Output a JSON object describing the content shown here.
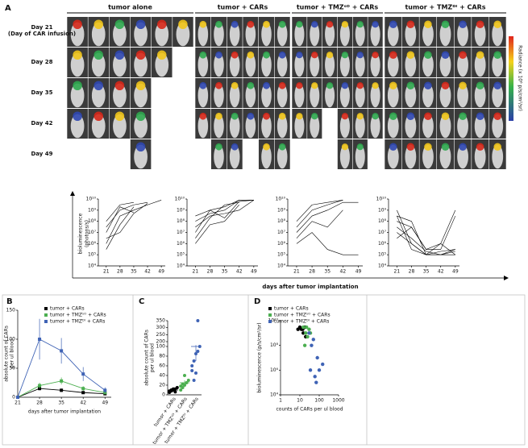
{
  "panel_a": {
    "label": "A",
    "groups": [
      "tumor alone",
      "tumor + CARs",
      "tumor + TMZˢᴼ + CARs",
      "tumor + TMZᴰᴵ + CARs"
    ],
    "days": [
      "Day 21",
      "Day 28",
      "Day 35",
      "Day 42",
      "Day 49"
    ],
    "day_note": "(Day of CAR infusion)",
    "colorbar_label": "Radiance (x 10⁶ p/s/cm²/sr)",
    "ylabel": [
      "bioluminescence",
      "(photons/s)"
    ],
    "xlabel": "days after tumor implantation"
  },
  "chart_data": [
    {
      "type": "line",
      "log_y": true,
      "color": "#000000",
      "x": [
        21,
        28,
        35,
        42,
        49
      ],
      "xlim": [
        17,
        51
      ],
      "xticks": [
        21,
        28,
        35,
        42,
        49
      ],
      "ylim": [
        10000,
        10000000000
      ],
      "yticks": [
        {
          "value": 10000,
          "label": "10⁴"
        },
        {
          "value": 100000,
          "label": "10⁵"
        },
        {
          "value": 1000000,
          "label": "10⁶"
        },
        {
          "value": 10000000,
          "label": "10⁷"
        },
        {
          "value": 100000000,
          "label": "10⁸"
        },
        {
          "value": 1000000000,
          "label": "10⁹"
        },
        {
          "value": 10000000000,
          "label": "10¹⁰"
        }
      ],
      "series": [
        {
          "values": [
            30000000,
            1000000000,
            3000000000,
            5000000000,
            null
          ]
        },
        {
          "values": [
            100000000,
            3000000000,
            5000000000,
            null,
            null
          ]
        },
        {
          "values": [
            1000000,
            300000000,
            1000000000,
            3000000000,
            8000000000
          ]
        },
        {
          "values": [
            300000,
            50000000,
            2000000000,
            null,
            null
          ]
        },
        {
          "values": [
            3000000,
            10000000,
            500000000,
            4000000000,
            null
          ]
        },
        {
          "values": [
            10000000,
            2000000000,
            600000000,
            null,
            null
          ]
        }
      ]
    },
    {
      "type": "line",
      "log_y": true,
      "color": "#000000",
      "x": [
        21,
        28,
        35,
        42,
        49
      ],
      "xlim": [
        17,
        51
      ],
      "xticks": [
        21,
        28,
        35,
        42,
        49
      ],
      "ylim": [
        10000,
        10000000000
      ],
      "yticks": [
        {
          "value": 10000,
          "label": "10⁴"
        },
        {
          "value": 100000,
          "label": "10⁵"
        },
        {
          "value": 1000000,
          "label": "10⁶"
        },
        {
          "value": 10000000,
          "label": "10⁷"
        },
        {
          "value": 100000000,
          "label": "10⁸"
        },
        {
          "value": 1000000000,
          "label": "10⁹"
        },
        {
          "value": 10000000000,
          "label": "10¹⁰"
        }
      ],
      "series": [
        {
          "values": [
            100000000,
            500000000,
            1000000000,
            8000000000,
            8000000000
          ]
        },
        {
          "values": [
            3000000,
            200000000,
            3000000000,
            5000000000,
            null
          ]
        },
        {
          "values": [
            10000000,
            1000000000,
            200000000,
            6000000000,
            8000000000
          ]
        },
        {
          "values": [
            1000000,
            50000000,
            100000000,
            3000000000,
            null
          ]
        },
        {
          "values": [
            300000000,
            1000000000,
            2000000000,
            8000000000,
            8000000000
          ]
        },
        {
          "values": [
            30000000,
            300000000,
            500000000,
            1000000000,
            8000000000
          ]
        }
      ]
    },
    {
      "type": "line",
      "log_y": true,
      "color": "#000000",
      "x": [
        21,
        28,
        35,
        42,
        49
      ],
      "xlim": [
        17,
        51
      ],
      "xticks": [
        21,
        28,
        35,
        42,
        49
      ],
      "ylim": [
        10000,
        10000000000
      ],
      "yticks": [
        {
          "value": 10000,
          "label": "10⁴"
        },
        {
          "value": 100000,
          "label": "10⁵"
        },
        {
          "value": 1000000,
          "label": "10⁶"
        },
        {
          "value": 10000000,
          "label": "10⁷"
        },
        {
          "value": 100000000,
          "label": "10⁸"
        },
        {
          "value": 1000000000,
          "label": "10⁹"
        },
        {
          "value": 10000000000,
          "label": "10¹⁰"
        }
      ],
      "series": [
        {
          "values": [
            100000000,
            3000000000,
            5000000000,
            8000000000,
            null
          ]
        },
        {
          "values": [
            30000000,
            1000000000,
            3000000000,
            8000000000,
            null
          ]
        },
        {
          "values": [
            10000000,
            300000000,
            1000000000,
            5000000000,
            5000000000
          ]
        },
        {
          "values": [
            3000000,
            100000000,
            30000000,
            1000000000,
            null
          ]
        },
        {
          "values": [
            1000000,
            10000000,
            300000,
            100000,
            100000
          ]
        }
      ]
    },
    {
      "type": "line",
      "log_y": true,
      "color": "#000000",
      "x": [
        21,
        28,
        35,
        42,
        49
      ],
      "xlim": [
        17,
        51
      ],
      "xticks": [
        21,
        28,
        35,
        42,
        49
      ],
      "ylim": [
        10000,
        10000000000
      ],
      "yticks": [
        {
          "value": 10000,
          "label": "10⁴"
        },
        {
          "value": 100000,
          "label": "10⁵"
        },
        {
          "value": 1000000,
          "label": "10⁶"
        },
        {
          "value": 10000000,
          "label": "10⁷"
        },
        {
          "value": 100000000,
          "label": "10⁸"
        },
        {
          "value": 1000000000,
          "label": "10⁹"
        },
        {
          "value": 10000000000,
          "label": "10¹⁰"
        }
      ],
      "series": [
        {
          "values": [
            300000000,
            100000000,
            100000,
            1000000,
            1000000000
          ]
        },
        {
          "values": [
            100000000,
            30000000,
            300000,
            300000,
            300000000
          ]
        },
        {
          "values": [
            10000000,
            1000000,
            100000,
            100000,
            100000
          ]
        },
        {
          "values": [
            30000000,
            3000000,
            200000,
            100000,
            300000
          ]
        },
        {
          "values": [
            1000000000,
            1000000,
            100000,
            200000,
            300000
          ]
        },
        {
          "values": [
            3000000,
            30000000,
            300000,
            1000000,
            100000
          ]
        },
        {
          "values": [
            300000000,
            300000,
            100000,
            100000,
            200000
          ]
        }
      ]
    },
    {
      "type": "line",
      "panel": "B",
      "markers": true,
      "x": [
        21,
        28,
        35,
        42,
        49
      ],
      "xlim": [
        21,
        51
      ],
      "xticks": [
        21,
        28,
        35,
        42,
        49
      ],
      "ylim": [
        0,
        150
      ],
      "yticks": [
        0,
        50,
        100,
        150
      ],
      "ylabel": [
        "absolute count of CARs",
        "per ul blood"
      ],
      "xlabel": "days after tumor implantation",
      "series": [
        {
          "name": "tumor + CARs",
          "color": "#000000",
          "values": [
            0,
            15,
            12,
            8,
            6
          ],
          "errors": [
            0,
            3,
            3,
            2,
            2
          ]
        },
        {
          "name": "tumor + TMZˢᴼ + CARs",
          "color": "#4caf50",
          "values": [
            0,
            20,
            28,
            15,
            8
          ],
          "errors": [
            0,
            5,
            6,
            4,
            3
          ]
        },
        {
          "name": "tumor + TMZᴰᴵ + CARs",
          "color": "#3f63b5",
          "values": [
            0,
            100,
            80,
            40,
            12
          ],
          "errors": [
            0,
            35,
            22,
            12,
            5
          ]
        }
      ]
    },
    {
      "type": "strip",
      "panel": "C",
      "ylim": [
        0,
        350
      ],
      "y_break": [
        100,
        200
      ],
      "yticks": [
        0,
        20,
        40,
        60,
        80,
        100,
        200,
        250,
        300,
        350
      ],
      "ylabel": [
        "absolute count of CARs",
        "per ul blood"
      ],
      "categories": [
        "tumor + CARs",
        "tumor + TMZˢᴼ + CARs",
        "tumor + TMZᴰᴵ + CARs"
      ],
      "means": [
        10,
        25,
        100
      ],
      "errors": [
        3,
        5,
        30
      ],
      "series": [
        {
          "color": "#000000",
          "values": [
            5,
            8,
            10,
            12,
            15,
            8,
            10,
            12,
            6
          ]
        },
        {
          "color": "#4caf50",
          "values": [
            10,
            15,
            20,
            25,
            30,
            18,
            22,
            40
          ]
        },
        {
          "color": "#3f63b5",
          "values": [
            50,
            70,
            85,
            90,
            100,
            60,
            30,
            45,
            350
          ]
        }
      ]
    },
    {
      "type": "scatter",
      "panel": "D",
      "log_x": true,
      "log_y": true,
      "xlim": [
        1,
        1000
      ],
      "xticks": [
        1,
        10,
        100,
        1000
      ],
      "ylim": [
        10000,
        10000000000
      ],
      "yticks": [
        {
          "value": 10000,
          "label": "10⁴"
        },
        {
          "value": 1000000,
          "label": "10⁶"
        },
        {
          "value": 100000000,
          "label": "10⁸"
        },
        {
          "value": 10000000000,
          "label": "10¹⁰"
        }
      ],
      "ylabel": "bioluminescence (p/s/cm²/sr)",
      "xlabel": "counts of CARs per ul blood",
      "series": [
        {
          "name": "tumor + CARs",
          "color": "#000000",
          "x": [
            10,
            12,
            15,
            18,
            8,
            20,
            14
          ],
          "values": [
            3000000000,
            2000000000,
            1000000000,
            3000000000,
            2000000000,
            500000000,
            2000000000
          ]
        },
        {
          "name": "tumor + TMZˢᴼ + CARs",
          "color": "#4caf50",
          "x": [
            15,
            20,
            25,
            30,
            18,
            22,
            35
          ],
          "values": [
            3000000000,
            1000000000,
            500000000,
            2000000000,
            100000000,
            3000000000,
            1000000000
          ]
        },
        {
          "name": "tumor + TMZᴰᴵ + CARs",
          "color": "#3f63b5",
          "x": [
            30,
            50,
            80,
            100,
            40,
            60,
            150,
            70,
            35
          ],
          "values": [
            1000000000,
            300000000,
            10000000,
            1000000,
            100000000,
            300000,
            3000000,
            100000,
            1000000
          ]
        }
      ]
    }
  ]
}
